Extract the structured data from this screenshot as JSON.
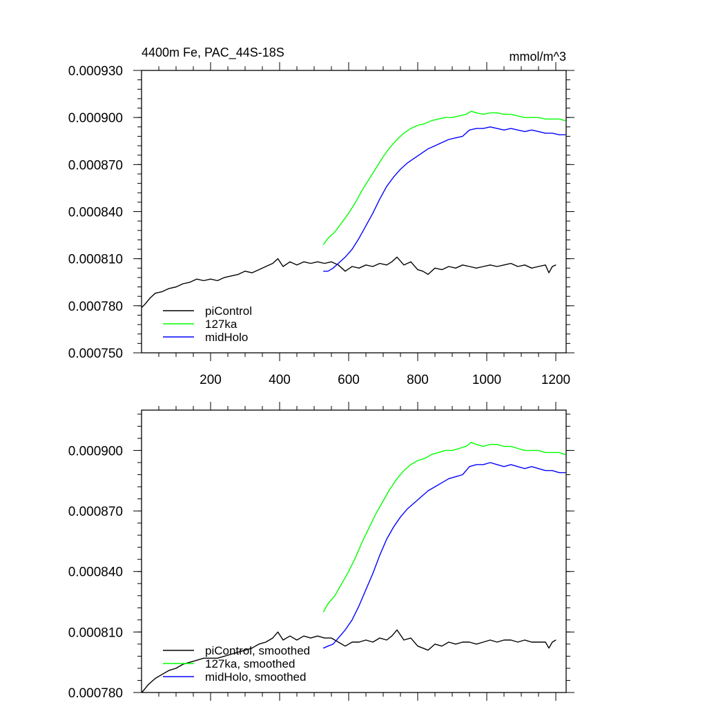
{
  "chart_data": [
    {
      "type": "line",
      "title": "4400m Fe, PAC_44S-18S",
      "units": "mmol/m^3",
      "xlim": [
        0,
        1230
      ],
      "ylim": [
        0.00075,
        0.00093
      ],
      "xticks": [
        200,
        400,
        600,
        800,
        1000,
        1200
      ],
      "xtick_labels": [
        "200",
        "400",
        "600",
        "800",
        "1000",
        "1200"
      ],
      "yticks": [
        0.00075,
        0.00078,
        0.00081,
        0.00084,
        0.00087,
        0.0009,
        0.00093
      ],
      "ytick_labels": [
        "0.000750",
        "0.000780",
        "0.000810",
        "0.000840",
        "0.000870",
        "0.000900",
        "0.000930"
      ],
      "legend": "bottom-left",
      "series": [
        {
          "name": "piControl",
          "color": "#000000",
          "x": [
            1,
            10,
            25,
            40,
            60,
            80,
            100,
            120,
            140,
            160,
            180,
            200,
            220,
            240,
            260,
            280,
            300,
            320,
            340,
            360,
            380,
            395,
            410,
            430,
            450,
            470,
            490,
            510,
            530,
            550,
            570,
            590,
            610,
            630,
            650,
            670,
            690,
            710,
            725,
            740,
            760,
            780,
            800,
            815,
            830,
            850,
            870,
            890,
            910,
            930,
            950,
            970,
            990,
            1010,
            1030,
            1050,
            1070,
            1090,
            1110,
            1130,
            1150,
            1170,
            1180,
            1190,
            1200
          ],
          "values": [
            0.000779,
            0.000781,
            0.000785,
            0.000788,
            0.000789,
            0.000791,
            0.000792,
            0.000794,
            0.000795,
            0.000797,
            0.000796,
            0.000797,
            0.000796,
            0.000798,
            0.000799,
            0.0008,
            0.000802,
            0.000801,
            0.000803,
            0.000805,
            0.000807,
            0.00081,
            0.000805,
            0.000808,
            0.000806,
            0.000808,
            0.000807,
            0.000808,
            0.000807,
            0.000808,
            0.000806,
            0.000802,
            0.000805,
            0.000804,
            0.000806,
            0.000805,
            0.000807,
            0.000806,
            0.000808,
            0.000811,
            0.000806,
            0.000808,
            0.000803,
            0.000802,
            0.0008,
            0.000804,
            0.000803,
            0.000805,
            0.000804,
            0.000806,
            0.000805,
            0.000804,
            0.000805,
            0.000806,
            0.000805,
            0.000806,
            0.000807,
            0.000805,
            0.000806,
            0.000804,
            0.000805,
            0.000806,
            0.000801,
            0.000805,
            0.000806
          ]
        },
        {
          "name": "127ka",
          "color": "#00ff00",
          "x": [
            527,
            540,
            560,
            580,
            600,
            620,
            640,
            660,
            680,
            700,
            720,
            740,
            760,
            780,
            800,
            820,
            840,
            860,
            880,
            900,
            920,
            940,
            955,
            970,
            990,
            1010,
            1030,
            1050,
            1070,
            1090,
            1110,
            1130,
            1150,
            1170,
            1190,
            1210,
            1228
          ],
          "values": [
            0.000819,
            0.000823,
            0.000827,
            0.000833,
            0.000839,
            0.000846,
            0.000854,
            0.000861,
            0.000868,
            0.000875,
            0.000881,
            0.000886,
            0.00089,
            0.000893,
            0.000895,
            0.000896,
            0.000898,
            0.000899,
            0.0009,
            0.0009,
            0.000901,
            0.000902,
            0.000904,
            0.000903,
            0.000902,
            0.000903,
            0.000903,
            0.000902,
            0.000902,
            0.000901,
            0.0009,
            0.0009,
            0.0009,
            0.000899,
            0.000899,
            0.000899,
            0.000898
          ]
        },
        {
          "name": "midHolo",
          "color": "#0000ff",
          "x": [
            527,
            540,
            555,
            570,
            590,
            610,
            630,
            650,
            670,
            690,
            710,
            730,
            750,
            770,
            790,
            810,
            830,
            850,
            870,
            890,
            910,
            930,
            950,
            970,
            990,
            1010,
            1030,
            1050,
            1070,
            1090,
            1110,
            1130,
            1150,
            1170,
            1190,
            1210,
            1228
          ],
          "values": [
            0.000802,
            0.000802,
            0.000804,
            0.000807,
            0.000811,
            0.000816,
            0.000823,
            0.000831,
            0.000839,
            0.000848,
            0.000856,
            0.000862,
            0.000867,
            0.000871,
            0.000874,
            0.000877,
            0.00088,
            0.000882,
            0.000884,
            0.000886,
            0.000887,
            0.000888,
            0.000892,
            0.000893,
            0.000893,
            0.000894,
            0.000893,
            0.000892,
            0.000893,
            0.000892,
            0.000891,
            0.000892,
            0.000891,
            0.00089,
            0.00089,
            0.000889,
            0.000889
          ]
        }
      ]
    },
    {
      "type": "line",
      "title": "",
      "xlim": [
        0,
        1230
      ],
      "ylim": [
        0.00078,
        0.00092
      ],
      "xticks": [
        200,
        400,
        600,
        800,
        1000,
        1200
      ],
      "yticks": [
        0.00078,
        0.00081,
        0.00084,
        0.00087,
        0.0009
      ],
      "ytick_labels": [
        "0.000780",
        "0.000810",
        "0.000840",
        "0.000870",
        "0.000900"
      ],
      "legend": "bottom-left",
      "series": [
        {
          "name": "piControl, smoothed",
          "color": "#000000",
          "x": [
            1,
            20,
            40,
            60,
            80,
            100,
            120,
            140,
            160,
            180,
            200,
            220,
            240,
            260,
            280,
            300,
            320,
            340,
            360,
            380,
            395,
            410,
            430,
            450,
            470,
            490,
            510,
            530,
            550,
            570,
            590,
            610,
            630,
            650,
            670,
            690,
            710,
            725,
            740,
            760,
            780,
            800,
            815,
            830,
            850,
            870,
            890,
            910,
            930,
            950,
            970,
            990,
            1010,
            1030,
            1050,
            1070,
            1090,
            1110,
            1130,
            1150,
            1170,
            1180,
            1190,
            1200
          ],
          "values": [
            0.00078,
            0.000784,
            0.000787,
            0.000789,
            0.000791,
            0.000792,
            0.000794,
            0.000795,
            0.000796,
            0.000797,
            0.000797,
            0.000797,
            0.000798,
            0.000799,
            0.0008,
            0.000801,
            0.000802,
            0.000804,
            0.000805,
            0.000807,
            0.00081,
            0.000806,
            0.000808,
            0.000806,
            0.000808,
            0.000807,
            0.000808,
            0.000807,
            0.000807,
            0.000805,
            0.000803,
            0.000805,
            0.000805,
            0.000806,
            0.000805,
            0.000807,
            0.000806,
            0.000808,
            0.000811,
            0.000806,
            0.000807,
            0.000803,
            0.000802,
            0.000801,
            0.000804,
            0.000803,
            0.000805,
            0.000804,
            0.000805,
            0.000805,
            0.000804,
            0.000805,
            0.000806,
            0.000805,
            0.000806,
            0.000806,
            0.000805,
            0.000806,
            0.000805,
            0.000805,
            0.000805,
            0.000802,
            0.000805,
            0.000806
          ]
        },
        {
          "name": "127ka, smoothed",
          "color": "#00ff00",
          "x": [
            527,
            540,
            560,
            580,
            600,
            620,
            640,
            660,
            680,
            700,
            720,
            740,
            760,
            780,
            800,
            820,
            840,
            860,
            880,
            900,
            920,
            940,
            955,
            970,
            990,
            1010,
            1030,
            1050,
            1070,
            1090,
            1110,
            1130,
            1150,
            1170,
            1190,
            1210,
            1228
          ],
          "values": [
            0.00082,
            0.000824,
            0.000828,
            0.000834,
            0.00084,
            0.000847,
            0.000855,
            0.000862,
            0.000869,
            0.000875,
            0.000881,
            0.000886,
            0.00089,
            0.000893,
            0.000895,
            0.000896,
            0.000898,
            0.000899,
            0.0009,
            0.0009,
            0.000901,
            0.000902,
            0.000904,
            0.000903,
            0.000902,
            0.000903,
            0.000903,
            0.000902,
            0.000902,
            0.000901,
            0.0009,
            0.0009,
            0.0009,
            0.000899,
            0.000899,
            0.000899,
            0.000898
          ]
        },
        {
          "name": "midHolo, smoothed",
          "color": "#0000ff",
          "x": [
            527,
            540,
            555,
            570,
            590,
            610,
            630,
            650,
            670,
            690,
            710,
            730,
            750,
            770,
            790,
            810,
            830,
            850,
            870,
            890,
            910,
            930,
            950,
            970,
            990,
            1010,
            1030,
            1050,
            1070,
            1090,
            1110,
            1130,
            1150,
            1170,
            1190,
            1210,
            1228
          ],
          "values": [
            0.000802,
            0.000803,
            0.000804,
            0.000807,
            0.000811,
            0.000816,
            0.000823,
            0.000831,
            0.000839,
            0.000848,
            0.000856,
            0.000862,
            0.000867,
            0.000871,
            0.000874,
            0.000877,
            0.00088,
            0.000882,
            0.000884,
            0.000886,
            0.000887,
            0.000888,
            0.000892,
            0.000893,
            0.000893,
            0.000894,
            0.000893,
            0.000892,
            0.000893,
            0.000892,
            0.000891,
            0.000892,
            0.000891,
            0.00089,
            0.00089,
            0.000889,
            0.000889
          ]
        }
      ]
    }
  ]
}
